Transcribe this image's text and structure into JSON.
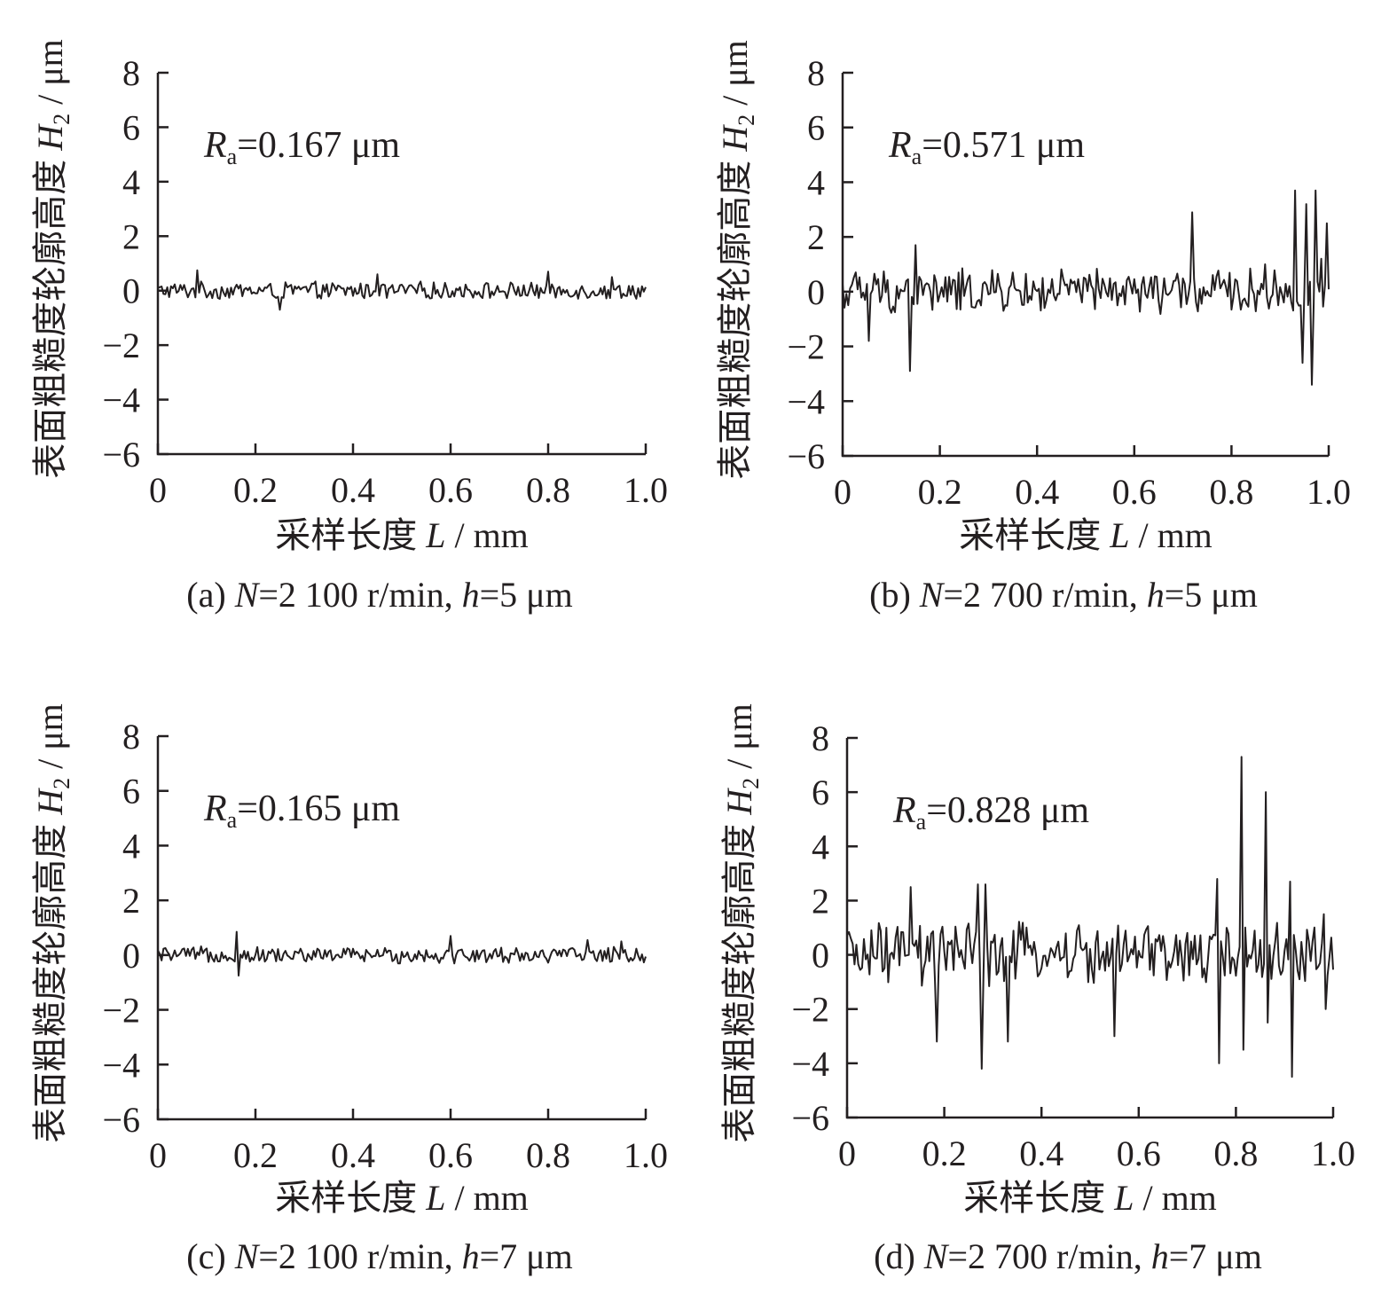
{
  "chart_data": [
    {
      "id": "a",
      "type": "line",
      "ylabel_text": "表面粗糙度轮廓高度 ",
      "ylabel_var": "H",
      "ylabel_sub": "2",
      "ylabel_unit": " / μm",
      "xlabel_text": "采样长度 ",
      "xlabel_var": "L",
      "xlabel_unit": " / mm",
      "xlim": [
        0,
        1.0
      ],
      "ylim": [
        -6,
        8
      ],
      "xticks": [
        "0",
        "0.2",
        "0.4",
        "0.6",
        "0.8",
        "1.0"
      ],
      "yticks": [
        "−6",
        "−4",
        "−2",
        "0",
        "2",
        "4",
        "6",
        "8"
      ],
      "annotation": {
        "var": "R",
        "sub": "a",
        "text": "=0.167 μm"
      },
      "caption": {
        "prefix": "(a) ",
        "var1": "N",
        "mid": "=2 100 r/min, ",
        "var2": "h",
        "suffix": "=5 μm"
      },
      "series": [
        {
          "x_range": [
            0,
            1.0
          ],
          "amplitude": 0.35,
          "spikes": [
            [
              0.08,
              0.75
            ],
            [
              0.25,
              -0.7
            ],
            [
              0.45,
              0.6
            ],
            [
              0.8,
              0.7
            ],
            [
              0.93,
              0.5
            ]
          ]
        }
      ]
    },
    {
      "id": "b",
      "type": "line",
      "ylabel_text": "表面粗糙度轮廓高度 ",
      "ylabel_var": "H",
      "ylabel_sub": "2",
      "ylabel_unit": " / μm",
      "xlabel_text": "采样长度 ",
      "xlabel_var": "L",
      "xlabel_unit": " / mm",
      "xlim": [
        0,
        1.0
      ],
      "ylim": [
        -6,
        8
      ],
      "xticks": [
        "0",
        "0.2",
        "0.4",
        "0.6",
        "0.8",
        "1.0"
      ],
      "yticks": [
        "−6",
        "−4",
        "−2",
        "0",
        "2",
        "4",
        "6",
        "8"
      ],
      "annotation": {
        "var": "R",
        "sub": "a",
        "text": "=0.571 μm"
      },
      "caption": {
        "prefix": "(b) ",
        "var1": "N",
        "mid": "=2 700 r/min, ",
        "var2": "h",
        "suffix": "=5 μm"
      },
      "series": [
        {
          "x_range": [
            0,
            1.0
          ],
          "amplitude": 0.9,
          "spikes": [
            [
              0.055,
              -1.8
            ],
            [
              0.14,
              -2.9
            ],
            [
              0.15,
              1.7
            ],
            [
              0.72,
              2.9
            ],
            [
              0.87,
              1.0
            ],
            [
              0.93,
              3.7
            ],
            [
              0.945,
              -2.6
            ],
            [
              0.955,
              3.2
            ],
            [
              0.965,
              -3.4
            ],
            [
              0.975,
              3.7
            ],
            [
              0.985,
              1.2
            ],
            [
              0.995,
              2.5
            ]
          ]
        }
      ]
    },
    {
      "id": "c",
      "type": "line",
      "ylabel_text": "表面粗糙度轮廓高度 ",
      "ylabel_var": "H",
      "ylabel_sub": "2",
      "ylabel_unit": " / μm",
      "xlabel_text": "采样长度 ",
      "xlabel_var": "L",
      "xlabel_unit": " / mm",
      "xlim": [
        0,
        1.0
      ],
      "ylim": [
        -6,
        8
      ],
      "xticks": [
        "0",
        "0.2",
        "0.4",
        "0.6",
        "0.8",
        "1.0"
      ],
      "yticks": [
        "−6",
        "−4",
        "−2",
        "0",
        "2",
        "4",
        "6",
        "8"
      ],
      "annotation": {
        "var": "R",
        "sub": "a",
        "text": "=0.165 μm"
      },
      "caption": {
        "prefix": "(c) ",
        "var1": "N",
        "mid": "=2 100 r/min, ",
        "var2": "h",
        "suffix": "=7 μm"
      },
      "series": [
        {
          "x_range": [
            0,
            1.0
          ],
          "amplitude": 0.33,
          "spikes": [
            [
              0.16,
              0.85
            ],
            [
              0.165,
              -0.75
            ],
            [
              0.6,
              0.7
            ],
            [
              0.88,
              0.55
            ],
            [
              0.95,
              0.5
            ]
          ]
        }
      ]
    },
    {
      "id": "d",
      "type": "line",
      "ylabel_text": "表面粗糙度轮廓高度 ",
      "ylabel_var": "H",
      "ylabel_sub": "2",
      "ylabel_unit": " / μm",
      "xlabel_text": "采样长度 ",
      "xlabel_var": "L",
      "xlabel_unit": " / mm",
      "xlim": [
        0,
        1.0
      ],
      "ylim": [
        -6,
        8
      ],
      "xticks": [
        "0",
        "0.2",
        "0.4",
        "0.6",
        "0.8",
        "1.0"
      ],
      "yticks": [
        "−6",
        "−4",
        "−2",
        "0",
        "2",
        "4",
        "6",
        "8"
      ],
      "annotation": {
        "var": "R",
        "sub": "a",
        "text": "=0.828 μm"
      },
      "caption": {
        "prefix": "(d) ",
        "var1": "N",
        "mid": "=2 700 r/min, ",
        "var2": "h",
        "suffix": "=7 μm"
      },
      "series": [
        {
          "x_range": [
            0,
            1.0
          ],
          "amplitude": 1.3,
          "spikes": [
            [
              0.13,
              2.5
            ],
            [
              0.185,
              -3.2
            ],
            [
              0.27,
              2.6
            ],
            [
              0.275,
              -4.2
            ],
            [
              0.285,
              2.6
            ],
            [
              0.33,
              -3.2
            ],
            [
              0.55,
              -3.0
            ],
            [
              0.76,
              2.8
            ],
            [
              0.765,
              -4.0
            ],
            [
              0.81,
              7.3
            ],
            [
              0.815,
              -3.5
            ],
            [
              0.86,
              6.0
            ],
            [
              0.865,
              -2.5
            ],
            [
              0.91,
              2.7
            ],
            [
              0.915,
              -4.5
            ],
            [
              0.98,
              1.5
            ],
            [
              0.985,
              -2.0
            ]
          ]
        }
      ]
    }
  ]
}
